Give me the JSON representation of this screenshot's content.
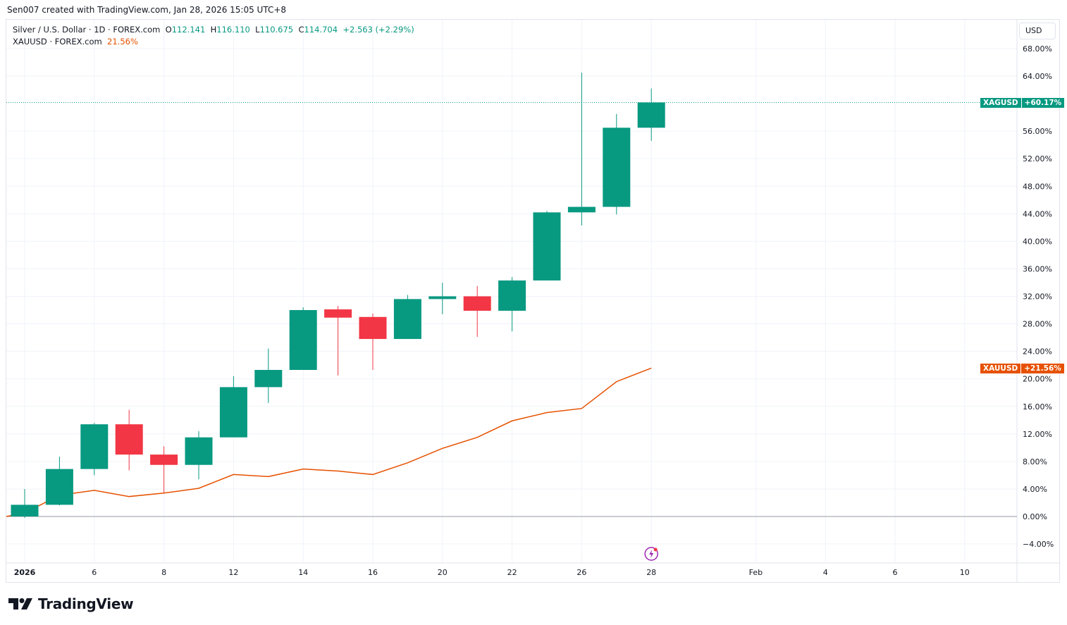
{
  "credit": "Sen007 created with TradingView.com, Jan 28, 2026 15:05 UTC+8",
  "legend": {
    "main_title": "Silver / U.S. Dollar · 1D · FOREX.com",
    "o_label": "O",
    "o_value": "112.141",
    "h_label": "H",
    "h_value": "116.110",
    "l_label": "L",
    "l_value": "110.675",
    "c_label": "C",
    "c_value": "114.704",
    "change": "+2.563 (+2.29%)",
    "compare_title": "XAUUSD · FOREX.com",
    "compare_value": "21.56%"
  },
  "currency_button": "USD",
  "tags": {
    "xag_symbol": "XAGUSD",
    "xag_value": "+60.17%",
    "xau_symbol": "XAUUSD",
    "xau_value": "+21.56%"
  },
  "logo_text": "TradingView",
  "colors": {
    "up": "#089981",
    "down": "#f23645",
    "compare": "#e65100",
    "grid": "#f0f3fa"
  },
  "chart_data": {
    "type": "candlestick",
    "title": "Silver / U.S. Dollar · 1D · FOREX.com",
    "ylabel": "%",
    "ylim": [
      -6,
      70
    ],
    "y_ticks": [
      "68.00%",
      "64.00%",
      "56.00%",
      "52.00%",
      "48.00%",
      "44.00%",
      "40.00%",
      "36.00%",
      "32.00%",
      "28.00%",
      "24.00%",
      "20.00%",
      "16.00%",
      "12.00%",
      "8.00%",
      "4.00%",
      "0.00%",
      "−4.00%"
    ],
    "y_tick_values": [
      68,
      64,
      56,
      52,
      48,
      44,
      40,
      36,
      32,
      28,
      24,
      20,
      16,
      12,
      8,
      4,
      0,
      -4
    ],
    "x_ticks": [
      {
        "label": "2026",
        "slot": 0
      },
      {
        "label": "6",
        "slot": 2
      },
      {
        "label": "8",
        "slot": 4
      },
      {
        "label": "12",
        "slot": 6
      },
      {
        "label": "14",
        "slot": 8
      },
      {
        "label": "16",
        "slot": 10
      },
      {
        "label": "20",
        "slot": 12
      },
      {
        "label": "22",
        "slot": 14
      },
      {
        "label": "26",
        "slot": 16
      },
      {
        "label": "28",
        "slot": 18
      },
      {
        "label": "Feb",
        "slot": 21
      },
      {
        "label": "4",
        "slot": 23
      },
      {
        "label": "6",
        "slot": 25
      },
      {
        "label": "10",
        "slot": 27
      }
    ],
    "series": [
      {
        "name": "XAGUSD",
        "type": "candlestick",
        "ohlc": [
          [
            0,
            4.0,
            -0.2,
            1.7
          ],
          [
            1.7,
            8.7,
            1.6,
            6.9
          ],
          [
            6.9,
            13.6,
            6.0,
            13.4
          ],
          [
            13.4,
            15.5,
            6.7,
            9.0
          ],
          [
            9.0,
            10.2,
            3.4,
            7.5
          ],
          [
            7.5,
            12.4,
            5.4,
            11.5
          ],
          [
            11.5,
            20.4,
            11.5,
            18.8
          ],
          [
            18.8,
            24.4,
            16.5,
            21.3
          ],
          [
            21.3,
            30.4,
            21.3,
            30.0
          ],
          [
            30.1,
            30.6,
            20.5,
            28.9
          ],
          [
            29.0,
            29.5,
            21.3,
            25.8
          ],
          [
            25.8,
            32.2,
            25.8,
            31.6
          ],
          [
            31.6,
            34.0,
            29.4,
            32.0
          ],
          [
            32.0,
            33.5,
            26.1,
            29.9
          ],
          [
            29.9,
            34.8,
            26.9,
            34.3
          ],
          [
            34.3,
            44.4,
            34.3,
            44.2
          ],
          [
            44.2,
            64.5,
            42.3,
            45.0
          ],
          [
            45.0,
            58.5,
            43.9,
            56.5
          ],
          [
            56.5,
            62.2,
            54.6,
            60.17
          ]
        ]
      },
      {
        "name": "XAUUSD",
        "type": "line",
        "values": [
          0.5,
          3.1,
          3.8,
          2.9,
          3.4,
          4.1,
          6.1,
          5.8,
          6.9,
          6.6,
          6.1,
          7.8,
          9.9,
          11.5,
          13.9,
          15.1,
          15.7,
          19.6,
          21.56
        ]
      }
    ]
  }
}
